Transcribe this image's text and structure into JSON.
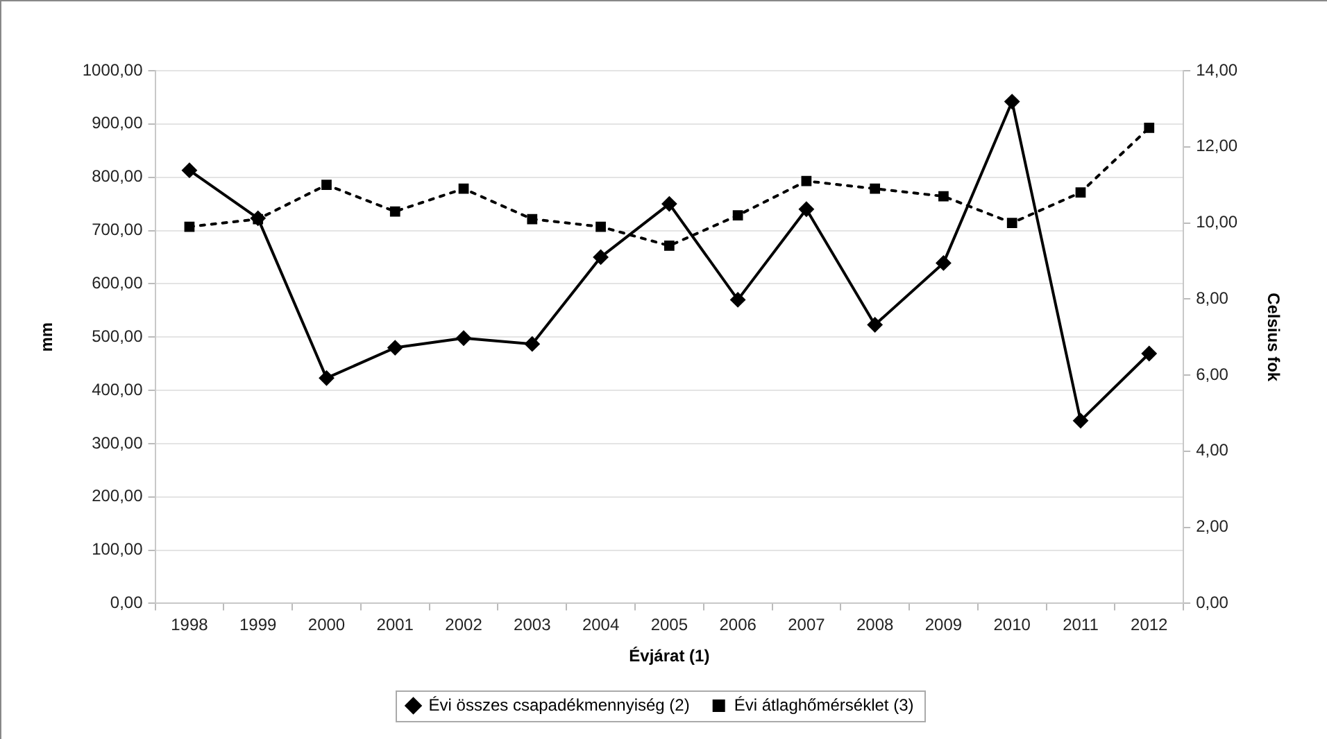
{
  "chart_data": {
    "type": "line",
    "xlabel": "Évjárat (1)",
    "ylabel": "mm",
    "y2label": "Celsius fok",
    "categories": [
      "1998",
      "1999",
      "2000",
      "2001",
      "2002",
      "2003",
      "2004",
      "2005",
      "2006",
      "2007",
      "2008",
      "2009",
      "2010",
      "2011",
      "2012"
    ],
    "series": [
      {
        "name": "Évi összes csapadékmennyiség (2)",
        "color": "#000000",
        "marker": "diamond",
        "line_style": "solid",
        "values": [
          813,
          723,
          423,
          480,
          498,
          487,
          650,
          750,
          570,
          740,
          523,
          639,
          942,
          343,
          469
        ]
      },
      {
        "name": "Évi átlaghőmérséklet (3)",
        "color": "#000000",
        "marker": "square",
        "line_style": "dotted",
        "axis": "y2",
        "values": [
          9.9,
          10.1,
          11.0,
          10.3,
          10.9,
          10.1,
          9.9,
          9.4,
          10.2,
          11.1,
          10.9,
          10.7,
          10.0,
          10.8,
          12.5
        ]
      }
    ],
    "ylim": [
      0,
      1000
    ],
    "yticks": [
      {
        "value": 0,
        "label": "0,00"
      },
      {
        "value": 100,
        "label": "100,00"
      },
      {
        "value": 200,
        "label": "200,00"
      },
      {
        "value": 300,
        "label": "300,00"
      },
      {
        "value": 400,
        "label": "400,00"
      },
      {
        "value": 500,
        "label": "500,00"
      },
      {
        "value": 600,
        "label": "600,00"
      },
      {
        "value": 700,
        "label": "700,00"
      },
      {
        "value": 800,
        "label": "800,00"
      },
      {
        "value": 900,
        "label": "900,00"
      },
      {
        "value": 1000,
        "label": "1000,00"
      }
    ],
    "y2lim": [
      0,
      14
    ],
    "y2ticks": [
      {
        "value": 0,
        "label": "0,00"
      },
      {
        "value": 2,
        "label": "2,00"
      },
      {
        "value": 4,
        "label": "4,00"
      },
      {
        "value": 6,
        "label": "6,00"
      },
      {
        "value": 8,
        "label": "8,00"
      },
      {
        "value": 10,
        "label": "10,00"
      },
      {
        "value": 12,
        "label": "12,00"
      },
      {
        "value": 14,
        "label": "14,00"
      }
    ],
    "grid": "y",
    "legend": "bottom"
  }
}
